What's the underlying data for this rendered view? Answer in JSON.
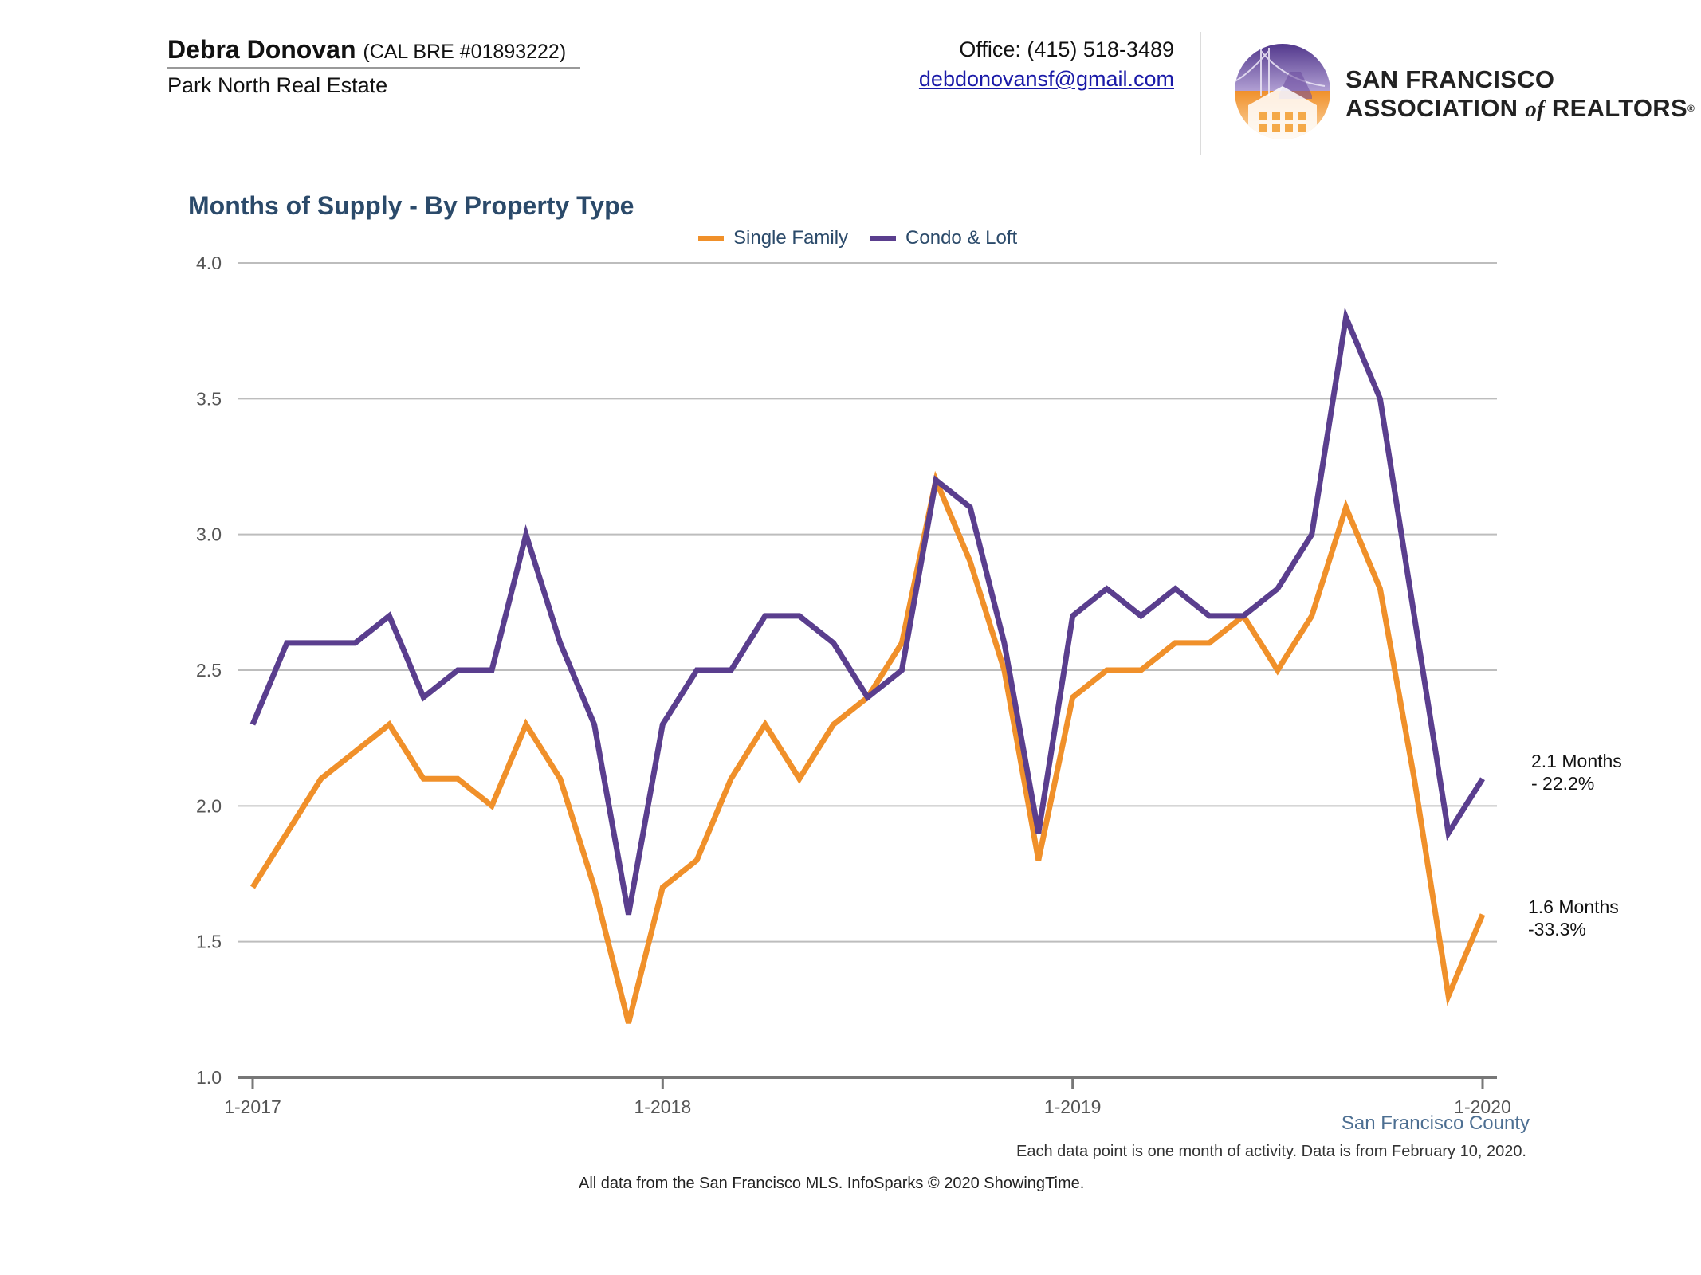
{
  "header": {
    "agent_name": "Debra Donovan",
    "agent_license": "(CAL BRE #01893222)",
    "agent_company": "Park North Real Estate",
    "office_phone": "Office: (415) 518-3489",
    "email": "debdonovansf@gmail.com",
    "logo": {
      "line1": "SAN FRANCISCO",
      "line2_start": "ASSOCIATION",
      "line2_of": "of",
      "line2_end": "REALTORS",
      "registered": "®",
      "colors": {
        "purple": "#6b4a9e",
        "orange": "#f09a2c"
      }
    }
  },
  "chart_data": {
    "type": "line",
    "title": "Months of Supply - By Property Type",
    "x_tick_labels": [
      "1-2017",
      "1-2018",
      "1-2019",
      "1-2020"
    ],
    "x": [
      "1-2017",
      "2-2017",
      "3-2017",
      "4-2017",
      "5-2017",
      "6-2017",
      "7-2017",
      "8-2017",
      "9-2017",
      "10-2017",
      "11-2017",
      "12-2017",
      "1-2018",
      "2-2018",
      "3-2018",
      "4-2018",
      "5-2018",
      "6-2018",
      "7-2018",
      "8-2018",
      "9-2018",
      "10-2018",
      "11-2018",
      "12-2018",
      "1-2019",
      "2-2019",
      "3-2019",
      "4-2019",
      "5-2019",
      "6-2019",
      "7-2019",
      "8-2019",
      "9-2019",
      "10-2019",
      "11-2019",
      "12-2019",
      "1-2020"
    ],
    "ylim": [
      1.0,
      4.0
    ],
    "y_ticks": [
      "1.0",
      "1.5",
      "2.0",
      "2.5",
      "3.0",
      "3.5",
      "4.0"
    ],
    "grid": "horizontal",
    "legend_position": "top-center",
    "series": [
      {
        "name": "Single Family",
        "color": "#f0902a",
        "values": [
          1.7,
          1.9,
          2.1,
          2.2,
          2.3,
          2.1,
          2.1,
          2.0,
          2.3,
          2.1,
          1.7,
          1.2,
          1.7,
          1.8,
          2.1,
          2.3,
          2.1,
          2.3,
          2.4,
          2.6,
          3.2,
          2.9,
          2.5,
          1.8,
          2.4,
          2.5,
          2.5,
          2.6,
          2.6,
          2.7,
          2.5,
          2.7,
          3.1,
          2.8,
          2.1,
          1.3,
          1.6
        ],
        "end_label_1": "1.6 Months",
        "end_label_2": "-33.3%"
      },
      {
        "name": "Condo & Loft",
        "color": "#5a3e8e",
        "values": [
          2.3,
          2.6,
          2.6,
          2.6,
          2.7,
          2.4,
          2.5,
          2.5,
          3.0,
          2.6,
          2.3,
          1.6,
          2.3,
          2.5,
          2.5,
          2.7,
          2.7,
          2.6,
          2.4,
          2.5,
          3.2,
          3.1,
          2.6,
          1.9,
          2.7,
          2.8,
          2.7,
          2.8,
          2.7,
          2.7,
          2.8,
          3.0,
          3.8,
          3.5,
          2.7,
          1.9,
          2.1
        ],
        "end_label_1": "2.1 Months",
        "end_label_2": "- 22.2%"
      }
    ],
    "region_label": "San Francisco County",
    "note": "Each data point is one month of activity. Data is from February 10, 2020."
  },
  "footer": {
    "source": "All data from the San Francisco MLS. InfoSparks © 2020 ShowingTime."
  }
}
